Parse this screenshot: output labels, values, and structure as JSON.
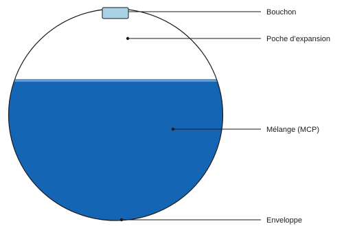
{
  "diagram": {
    "labels": {
      "cap": "Bouchon",
      "expansion": "Poche d’expansion",
      "mixture": "Mélange (MCP)",
      "shell": "Enveloppe"
    },
    "colors": {
      "liquid": "#1565b5",
      "liquid_surface": "#5b9bd8",
      "cap_fill": "#a9d2e6",
      "outline": "#1a1a1a",
      "background": "#ffffff"
    }
  }
}
